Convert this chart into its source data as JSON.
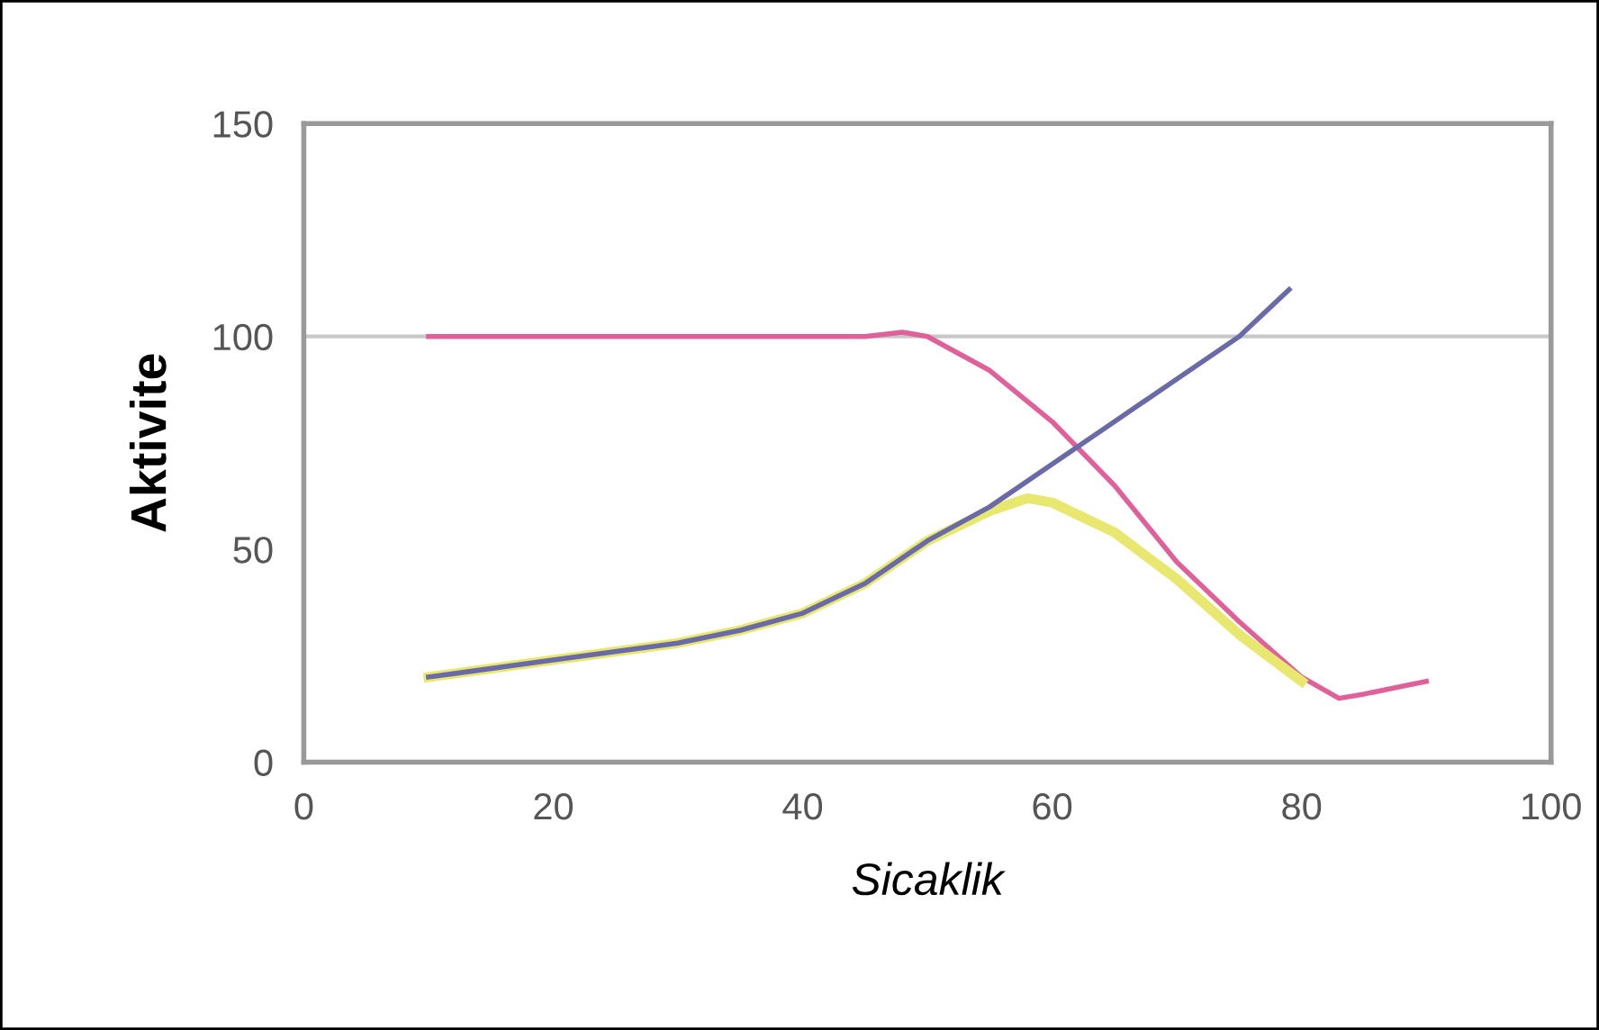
{
  "chart_data": {
    "type": "line",
    "xlabel": "Sicaklik",
    "ylabel": "Aktivite",
    "xlim": [
      0,
      100
    ],
    "xticks": [
      0,
      20,
      40,
      60,
      80,
      100
    ],
    "ylim": [
      0,
      150
    ],
    "yticks": [
      0,
      50,
      100,
      150
    ],
    "grid": false,
    "marker": "none",
    "line_style": "solid",
    "ref_lines": [
      {
        "axis": "y",
        "value": 100,
        "color": "#c8c8c8"
      }
    ],
    "series": [
      {
        "color": "#e0609a",
        "x": [
          10,
          45,
          48,
          50,
          55,
          60,
          65,
          70,
          75,
          80,
          83,
          85,
          90
        ],
        "values": [
          100,
          100,
          101,
          100,
          92,
          80,
          65,
          47,
          33,
          20,
          15,
          16,
          19
        ]
      },
      {
        "color": "#e8e870",
        "x": [
          10,
          20,
          30,
          35,
          40,
          45,
          50,
          55,
          58,
          60,
          65,
          70,
          75,
          80
        ],
        "values": [
          20,
          24,
          28,
          31,
          35,
          42,
          52,
          59,
          62,
          61,
          54,
          43,
          30,
          19
        ]
      },
      {
        "color": "#6a6aa8",
        "x": [
          10,
          20,
          30,
          35,
          40,
          45,
          50,
          55,
          60,
          65,
          70,
          75,
          79
        ],
        "values": [
          20,
          24,
          28,
          31,
          35,
          42,
          52,
          60,
          70,
          80,
          90,
          100,
          111
        ]
      }
    ]
  }
}
